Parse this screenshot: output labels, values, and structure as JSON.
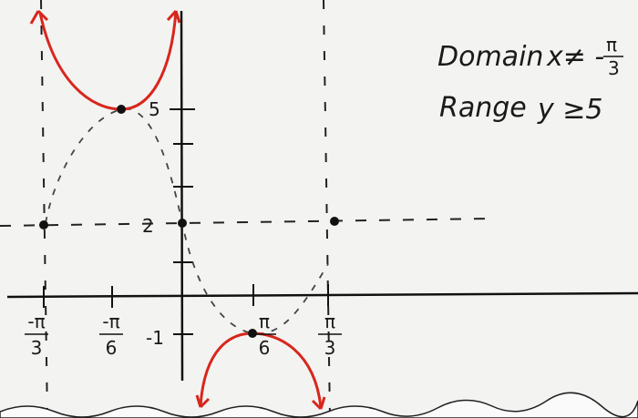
{
  "axis_labels": {
    "y_ticks": [
      "5",
      "2",
      "-1"
    ],
    "x_ticks": [
      {
        "num": "-π",
        "den": "3"
      },
      {
        "num": "-π",
        "den": "6"
      },
      {
        "num": "π",
        "den": "6"
      },
      {
        "num": "π",
        "den": "3"
      }
    ]
  },
  "notes": {
    "domain_label": "Domain",
    "domain_value": "x≠ -",
    "domain_frac": {
      "num": "π",
      "den": "3"
    },
    "range_label": "Range",
    "range_value": "y ≥5"
  }
}
